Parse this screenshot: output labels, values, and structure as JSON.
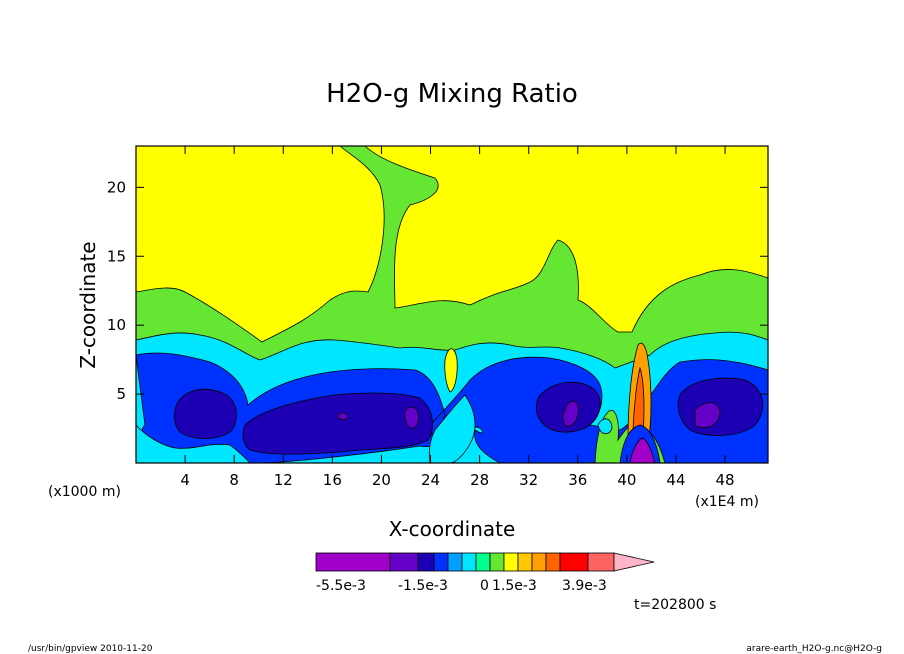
{
  "chart_data": {
    "type": "heatmap",
    "title": "H2O-g Mixing Ratio",
    "xlabel": "X-coordinate",
    "ylabel": "Z-coordinate",
    "x_unit_left": "(x1000 m)",
    "x_unit_right": "(x1E4 m)",
    "x_ticks": [
      "4",
      "8",
      "12",
      "16",
      "20",
      "24",
      "28",
      "32",
      "36",
      "40",
      "44",
      "48"
    ],
    "y_ticks": [
      "5",
      "10",
      "15",
      "20"
    ],
    "xlim": [
      0,
      51.5
    ],
    "ylim": [
      0,
      23
    ],
    "colorbar": {
      "labels": [
        "-5.5e-3",
        "-1.5e-3",
        "0",
        "1.5e-3",
        "3.9e-3"
      ],
      "colors": [
        "#a000c8",
        "#6400c8",
        "#1e00b4",
        "#0032ff",
        "#00a0ff",
        "#00e6ff",
        "#00ff8c",
        "#64e632",
        "#ffff00",
        "#ffc800",
        "#ffa000",
        "#ff6400",
        "#ff0000",
        "#ff6464",
        "#ffb4c8"
      ]
    },
    "time_label": "t=202800 s"
  },
  "footer": {
    "left": "/usr/bin/gpview  2010-11-20",
    "right": "arare-earth_H2O-g.nc@H2O-g"
  }
}
